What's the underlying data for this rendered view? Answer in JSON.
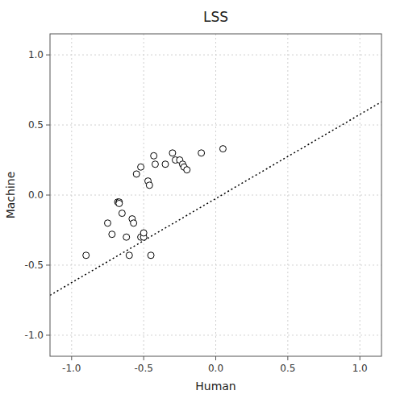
{
  "chart_data": {
    "type": "scatter",
    "title": "LSS",
    "xlabel": "Human",
    "ylabel": "Machine",
    "xlim": [
      -1.15,
      1.15
    ],
    "ylim": [
      -1.15,
      1.15
    ],
    "xticks": [
      {
        "value": -1.0,
        "label": "-1.0"
      },
      -0.5,
      {
        "value": 0.0,
        "label": "0.0"
      },
      0.5,
      {
        "value": 1.0,
        "label": "1.0"
      }
    ],
    "yticks": [
      {
        "value": -1.0,
        "label": "-1.0"
      },
      -0.5,
      {
        "value": 0.0,
        "label": "0.0"
      },
      0.5,
      {
        "value": 1.0,
        "label": "1.0"
      }
    ],
    "grid": true,
    "series": [
      {
        "type": "line",
        "color": "black",
        "line_style": "dotted",
        "x": [
          -1.15,
          1.15
        ],
        "values": [
          -0.715,
          0.665
        ]
      },
      {
        "type": "scatter",
        "color": "black",
        "marker": "open-circle",
        "x": [
          -0.9,
          -0.75,
          -0.72,
          -0.68,
          -0.67,
          -0.67,
          -0.65,
          -0.62,
          -0.6,
          -0.58,
          -0.57,
          -0.55,
          -0.52,
          -0.52,
          -0.5,
          -0.5,
          -0.47,
          -0.46,
          -0.45,
          -0.43,
          -0.42,
          -0.35,
          -0.3,
          -0.28,
          -0.25,
          -0.23,
          -0.22,
          -0.2,
          -0.1,
          0.05
        ],
        "values": [
          -0.43,
          -0.2,
          -0.28,
          -0.05,
          -0.05,
          -0.06,
          -0.13,
          -0.3,
          -0.43,
          -0.17,
          -0.2,
          0.15,
          0.2,
          -0.3,
          -0.3,
          -0.27,
          0.1,
          0.07,
          -0.43,
          0.28,
          0.22,
          0.22,
          0.3,
          0.25,
          0.25,
          0.22,
          0.2,
          0.18,
          0.3,
          0.33
        ]
      }
    ]
  }
}
